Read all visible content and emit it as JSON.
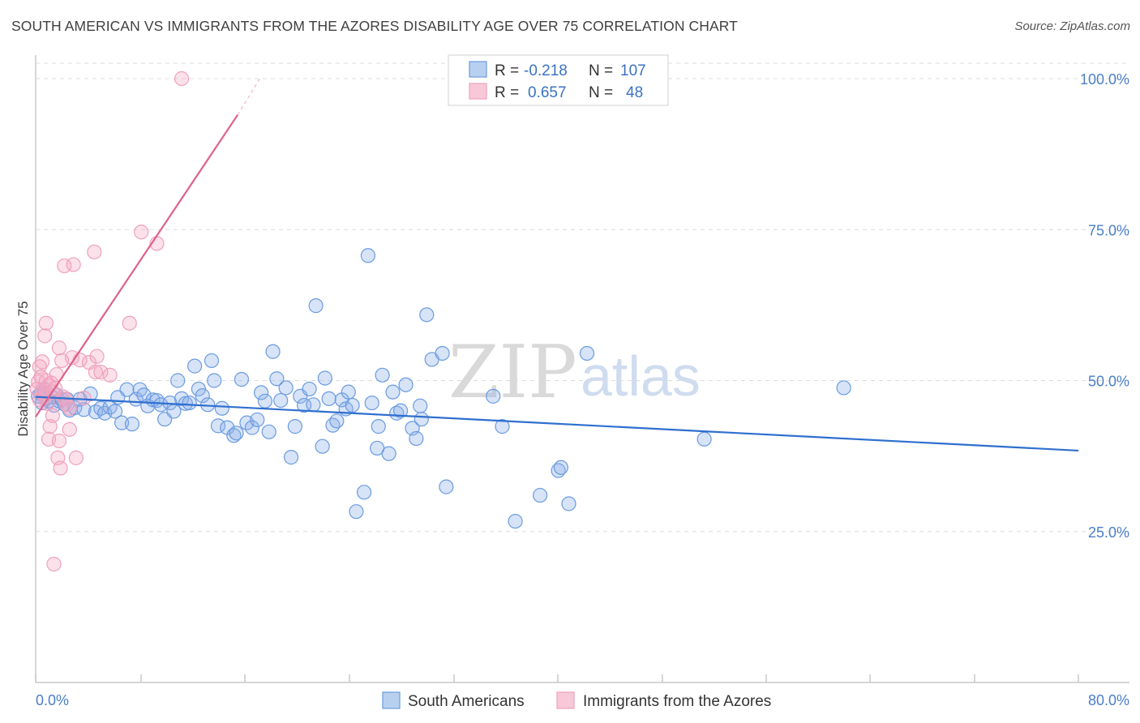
{
  "title": "SOUTH AMERICAN VS IMMIGRANTS FROM THE AZORES DISABILITY AGE OVER 75 CORRELATION CHART",
  "source": "Source: ZipAtlas.com",
  "watermark": {
    "zip": "ZIP",
    "atlas": "atlas"
  },
  "colors": {
    "blue": "#6a9be0",
    "blue_line": "#2f6fcf",
    "pink": "#f0a0bc",
    "pink_line": "#e0608a",
    "tick_text": "#4a7fc8"
  },
  "legend": {
    "r_label": "R =",
    "n_label": "N =",
    "rows": [
      {
        "r": "-0.218",
        "n": "107"
      },
      {
        "r": "0.657",
        "n": "48"
      }
    ]
  },
  "chart_data": {
    "type": "scatter",
    "title": "SOUTH AMERICAN VS IMMIGRANTS FROM THE AZORES DISABILITY AGE OVER 75 CORRELATION CHART",
    "xlabel": "",
    "ylabel": "Disability Age Over 75",
    "xlim": [
      0,
      80
    ],
    "ylim": [
      0,
      105
    ],
    "x_tick_labels": [
      "0.0%",
      "80.0%"
    ],
    "y_ticks": [
      25,
      50,
      75,
      100
    ],
    "y_tick_labels": [
      "25.0%",
      "50.0%",
      "75.0%",
      "100.0%"
    ],
    "series": [
      {
        "name": "South Americans",
        "r": -0.218,
        "n": 107,
        "trend": {
          "x": [
            0,
            80
          ],
          "y": [
            47.3,
            38.4
          ]
        },
        "points": [
          [
            0.2,
            47.4
          ],
          [
            0.4,
            47.8
          ],
          [
            0.5,
            46.3
          ],
          [
            0.7,
            48.5
          ],
          [
            0.8,
            47.0
          ],
          [
            1.0,
            46.6
          ],
          [
            1.2,
            47.3
          ],
          [
            1.4,
            45.9
          ],
          [
            1.6,
            47.6
          ],
          [
            1.8,
            46.6
          ],
          [
            2.0,
            46.9
          ],
          [
            2.2,
            46.1
          ],
          [
            2.4,
            46.9
          ],
          [
            2.6,
            45.1
          ],
          [
            3.0,
            45.5
          ],
          [
            3.4,
            46.9
          ],
          [
            3.7,
            45.2
          ],
          [
            4.2,
            47.8
          ],
          [
            4.6,
            44.8
          ],
          [
            5.0,
            45.4
          ],
          [
            5.3,
            44.6
          ],
          [
            5.7,
            45.6
          ],
          [
            6.1,
            44.9
          ],
          [
            6.3,
            47.2
          ],
          [
            6.6,
            43.0
          ],
          [
            7.0,
            48.5
          ],
          [
            7.4,
            42.8
          ],
          [
            7.7,
            46.9
          ],
          [
            8.0,
            48.5
          ],
          [
            8.3,
            47.6
          ],
          [
            8.6,
            45.8
          ],
          [
            9.0,
            46.8
          ],
          [
            9.3,
            46.7
          ],
          [
            9.6,
            46.0
          ],
          [
            9.9,
            43.6
          ],
          [
            10.3,
            46.3
          ],
          [
            10.6,
            44.9
          ],
          [
            10.9,
            50.0
          ],
          [
            11.2,
            47.0
          ],
          [
            11.5,
            46.2
          ],
          [
            11.8,
            46.3
          ],
          [
            12.2,
            52.4
          ],
          [
            12.5,
            48.6
          ],
          [
            12.8,
            47.5
          ],
          [
            13.2,
            46.0
          ],
          [
            13.5,
            53.3
          ],
          [
            13.7,
            50.0
          ],
          [
            14.0,
            42.5
          ],
          [
            14.3,
            45.4
          ],
          [
            14.7,
            42.2
          ],
          [
            15.2,
            40.9
          ],
          [
            15.4,
            41.3
          ],
          [
            15.8,
            50.2
          ],
          [
            16.2,
            43.0
          ],
          [
            16.6,
            42.2
          ],
          [
            17.0,
            43.5
          ],
          [
            17.3,
            48.0
          ],
          [
            17.6,
            46.6
          ],
          [
            17.9,
            41.5
          ],
          [
            18.2,
            54.8
          ],
          [
            18.5,
            50.3
          ],
          [
            18.8,
            46.7
          ],
          [
            19.2,
            48.8
          ],
          [
            19.6,
            37.3
          ],
          [
            19.9,
            42.4
          ],
          [
            20.3,
            47.4
          ],
          [
            20.6,
            45.9
          ],
          [
            21.0,
            48.6
          ],
          [
            21.3,
            46.0
          ],
          [
            21.5,
            62.4
          ],
          [
            22.0,
            39.1
          ],
          [
            22.2,
            50.4
          ],
          [
            22.5,
            47.0
          ],
          [
            22.8,
            42.6
          ],
          [
            23.1,
            43.3
          ],
          [
            23.5,
            46.8
          ],
          [
            23.8,
            45.3
          ],
          [
            24.0,
            48.1
          ],
          [
            24.3,
            45.9
          ],
          [
            24.6,
            28.3
          ],
          [
            25.2,
            31.5
          ],
          [
            25.5,
            70.7
          ],
          [
            25.8,
            46.3
          ],
          [
            26.2,
            38.8
          ],
          [
            26.3,
            42.4
          ],
          [
            26.6,
            50.9
          ],
          [
            27.1,
            37.9
          ],
          [
            27.4,
            48.1
          ],
          [
            27.7,
            44.6
          ],
          [
            28.0,
            45.0
          ],
          [
            28.4,
            49.3
          ],
          [
            28.9,
            42.1
          ],
          [
            29.2,
            40.4
          ],
          [
            29.6,
            43.6
          ],
          [
            29.5,
            45.8
          ],
          [
            30.0,
            60.9
          ],
          [
            30.4,
            53.5
          ],
          [
            31.2,
            54.5
          ],
          [
            31.5,
            32.4
          ],
          [
            35.1,
            47.4
          ],
          [
            35.8,
            42.4
          ],
          [
            36.8,
            26.7
          ],
          [
            38.7,
            31.0
          ],
          [
            40.1,
            35.1
          ],
          [
            40.3,
            35.6
          ],
          [
            40.9,
            29.6
          ],
          [
            42.3,
            54.5
          ],
          [
            51.3,
            40.3
          ],
          [
            62.0,
            48.8
          ]
        ]
      },
      {
        "name": "Immigrants from the Azores",
        "r": 0.657,
        "n": 48,
        "trend": {
          "x": [
            0,
            15.5
          ],
          "y": [
            44.0,
            94.0
          ]
        },
        "trend_dashed": {
          "x": [
            15.5,
            17.2
          ],
          "y": [
            94.0,
            100.0
          ]
        },
        "points": [
          [
            0.1,
            48.6
          ],
          [
            0.2,
            49.8
          ],
          [
            0.3,
            52.3
          ],
          [
            0.3,
            46.8
          ],
          [
            0.4,
            50.6
          ],
          [
            0.5,
            48.4
          ],
          [
            0.5,
            53.1
          ],
          [
            0.6,
            47.9
          ],
          [
            0.7,
            47.3
          ],
          [
            0.7,
            57.4
          ],
          [
            0.8,
            59.5
          ],
          [
            0.8,
            50.0
          ],
          [
            0.9,
            46.2
          ],
          [
            1.0,
            49.2
          ],
          [
            1.0,
            40.3
          ],
          [
            1.1,
            42.4
          ],
          [
            1.2,
            49.6
          ],
          [
            1.3,
            44.2
          ],
          [
            1.3,
            48.1
          ],
          [
            1.4,
            19.6
          ],
          [
            1.5,
            48.7
          ],
          [
            1.6,
            51.0
          ],
          [
            1.7,
            37.2
          ],
          [
            1.8,
            55.4
          ],
          [
            1.8,
            40.0
          ],
          [
            1.9,
            35.5
          ],
          [
            2.0,
            53.3
          ],
          [
            2.1,
            47.3
          ],
          [
            2.2,
            69.0
          ],
          [
            2.3,
            46.9
          ],
          [
            2.6,
            45.4
          ],
          [
            2.6,
            41.9
          ],
          [
            2.8,
            53.8
          ],
          [
            2.9,
            69.2
          ],
          [
            3.1,
            37.2
          ],
          [
            3.4,
            53.4
          ],
          [
            3.7,
            47.1
          ],
          [
            4.1,
            53.0
          ],
          [
            4.5,
            71.3
          ],
          [
            4.6,
            51.4
          ],
          [
            4.7,
            54.0
          ],
          [
            5.0,
            51.4
          ],
          [
            5.7,
            50.9
          ],
          [
            7.2,
            59.5
          ],
          [
            8.1,
            74.6
          ],
          [
            9.3,
            72.7
          ],
          [
            11.2,
            100.0
          ],
          [
            2.4,
            46.0
          ]
        ]
      }
    ]
  },
  "bottom_legend": [
    "South Americans",
    "Immigrants from the Azores"
  ]
}
